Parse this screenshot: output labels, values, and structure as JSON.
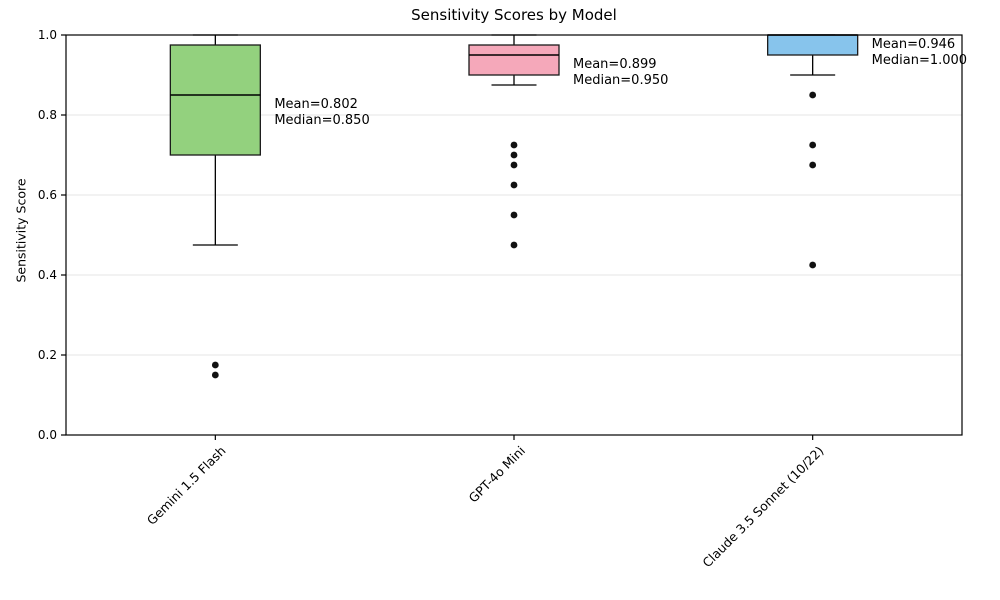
{
  "figure": {
    "title": "Sensitivity Scores by Model",
    "ylabel": "Sensitivity Score"
  },
  "chart_data": {
    "type": "boxplot",
    "title": "Sensitivity Scores by Model",
    "xlabel": "",
    "ylabel": "Sensitivity Score",
    "ylim": [
      0.0,
      1.0
    ],
    "yticks": [
      0.0,
      0.2,
      0.4,
      0.6,
      0.8,
      1.0
    ],
    "ytick_labels": [
      "0.0",
      "0.2",
      "0.4",
      "0.6",
      "0.8",
      "1.0"
    ],
    "grid": "horizontal-light",
    "gridline_color": "#e6e6e6",
    "box_edge_color": "#1a1a1a",
    "median_color": "#000000",
    "outlier_color": "#111111",
    "categories": [
      "Gemini 1.5 Flash",
      "GPT-4o Mini",
      "Claude 3.5 Sonnet (10/22)"
    ],
    "series": [
      {
        "name": "Gemini 1.5 Flash",
        "box_color": "#93d17e",
        "whisker_low": 0.475,
        "q1": 0.7,
        "median": 0.85,
        "q3": 0.975,
        "whisker_high": 1.0,
        "outliers": [
          0.175,
          0.15
        ],
        "mean": 0.802,
        "annotation_lines": [
          "Mean=0.802",
          "Median=0.850"
        ]
      },
      {
        "name": "GPT-4o Mini",
        "box_color": "#f5a8ba",
        "whisker_low": 0.875,
        "q1": 0.9,
        "median": 0.95,
        "q3": 0.975,
        "whisker_high": 1.0,
        "outliers": [
          0.725,
          0.7,
          0.675,
          0.625,
          0.55,
          0.475
        ],
        "mean": 0.899,
        "annotation_lines": [
          "Mean=0.899",
          "Median=0.950"
        ]
      },
      {
        "name": "Claude 3.5 Sonnet (10/22)",
        "box_color": "#87c4ec",
        "whisker_low": 0.9,
        "q1": 0.95,
        "median": 1.0,
        "q3": 1.0,
        "whisker_high": 1.0,
        "outliers": [
          0.85,
          0.725,
          0.675,
          0.425
        ],
        "mean": 0.946,
        "annotation_lines": [
          "Mean=0.946",
          "Median=1.000"
        ]
      }
    ]
  }
}
